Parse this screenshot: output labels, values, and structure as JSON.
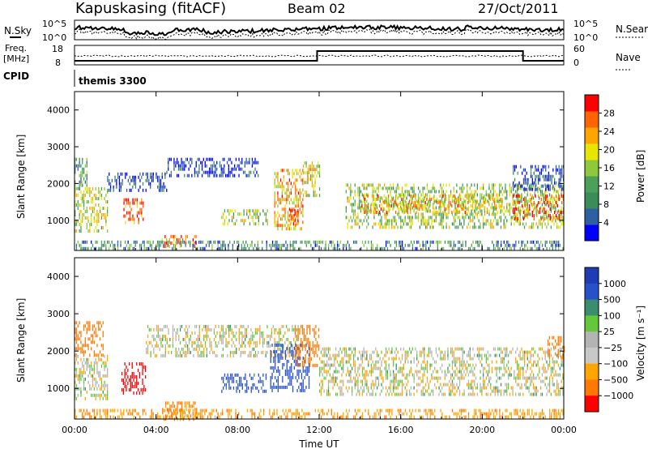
{
  "header": {
    "station": "Kapuskasing (fitACF)",
    "beam": "Beam 02",
    "date": "27/Oct/2011"
  },
  "top_panels": {
    "nsky": {
      "label": "N.Sky",
      "right_label": "N.Search",
      "ticks_left": [
        "10^5",
        "10^0"
      ],
      "ticks_right": [
        "10^5",
        "10^0"
      ]
    },
    "freq": {
      "label_line1": "Freq.",
      "label_line2": "[MHz]",
      "right_label": "Nave",
      "ticks_left": [
        "18",
        "8"
      ],
      "ticks_right": [
        "60",
        "0"
      ]
    },
    "cpid": {
      "label": "CPID",
      "value": "themis 3300"
    }
  },
  "colors": {
    "power": [
      "#0000ff",
      "#2e5fa0",
      "#3c8c5a",
      "#4ca05a",
      "#8ec83c",
      "#e6e600",
      "#ffa500",
      "#ff6400",
      "#ff0000"
    ],
    "velocity": [
      "#1e3cb4",
      "#2850c8",
      "#3c8c6e",
      "#64c83c",
      "#b4b4b4",
      "#c8c8c8",
      "#ffa500",
      "#ff7800",
      "#ff0000"
    ]
  },
  "chart_data": [
    {
      "type": "heatmap",
      "name": "power",
      "ylabel": "Slant Range [km]",
      "xlabel": "",
      "x_ticks": [
        "00:00",
        "04:00",
        "08:00",
        "12:00",
        "16:00",
        "20:00",
        "00:00"
      ],
      "xlim_hours": [
        0,
        24
      ],
      "y_ticks": [
        "1000",
        "2000",
        "3000",
        "4000"
      ],
      "ylim_km": [
        180,
        4500
      ],
      "colorbar_label": "Power [dB]",
      "colorbar_ticks": [
        "4",
        "8",
        "12",
        "16",
        "20",
        "24",
        "28"
      ],
      "regions": [
        {
          "t0": 0.0,
          "t1": 1.6,
          "r0": 700,
          "r1": 1900,
          "level": 0.55
        },
        {
          "t0": 0.0,
          "t1": 0.6,
          "r0": 1900,
          "r1": 2700,
          "level": 0.35
        },
        {
          "t0": 1.6,
          "t1": 4.5,
          "r0": 1800,
          "r1": 2300,
          "level": 0.1
        },
        {
          "t0": 2.4,
          "t1": 3.4,
          "r0": 900,
          "r1": 1600,
          "level": 0.85
        },
        {
          "t0": 4.5,
          "t1": 9.0,
          "r0": 2200,
          "r1": 2700,
          "level": 0.1
        },
        {
          "t0": 4.2,
          "t1": 6.0,
          "r0": 300,
          "r1": 600,
          "level": 0.8
        },
        {
          "t0": 7.2,
          "t1": 9.5,
          "r0": 900,
          "r1": 1300,
          "level": 0.5
        },
        {
          "t0": 9.8,
          "t1": 11.2,
          "r0": 800,
          "r1": 2400,
          "level": 0.7
        },
        {
          "t0": 10.5,
          "t1": 11.0,
          "r0": 900,
          "r1": 1300,
          "level": 0.9
        },
        {
          "t0": 11.2,
          "t1": 12.0,
          "r0": 1700,
          "r1": 2600,
          "level": 0.6
        },
        {
          "t0": 13.3,
          "t1": 24.0,
          "r0": 800,
          "r1": 2000,
          "level": 0.5
        },
        {
          "t0": 14.0,
          "t1": 21.0,
          "r0": 1200,
          "r1": 1700,
          "level": 0.7
        },
        {
          "t0": 21.5,
          "t1": 24.0,
          "r0": 1000,
          "r1": 1700,
          "level": 0.85
        },
        {
          "t0": 21.5,
          "t1": 24.0,
          "r0": 1800,
          "r1": 2500,
          "level": 0.15
        },
        {
          "t0": 0.0,
          "t1": 24.0,
          "r0": 200,
          "r1": 450,
          "level": 0.3
        }
      ]
    },
    {
      "type": "heatmap",
      "name": "velocity",
      "ylabel": "Slant Range [km]",
      "xlabel": "Time UT",
      "x_ticks": [
        "00:00",
        "04:00",
        "08:00",
        "12:00",
        "16:00",
        "20:00",
        "00:00"
      ],
      "xlim_hours": [
        0,
        24
      ],
      "y_ticks": [
        "1000",
        "2000",
        "3000",
        "4000"
      ],
      "ylim_km": [
        180,
        4500
      ],
      "colorbar_label": "Velocity [m s⁻¹]",
      "colorbar_ticks": [
        "1000",
        "500",
        "100",
        "25",
        "−25",
        "−100",
        "−500",
        "−1000"
      ],
      "regions": [
        {
          "t0": 0.0,
          "t1": 1.4,
          "r0": 1900,
          "r1": 2800,
          "vel": -300
        },
        {
          "t0": 0.0,
          "t1": 1.6,
          "r0": 700,
          "r1": 1900,
          "vel": 0
        },
        {
          "t0": 2.3,
          "t1": 3.5,
          "r0": 900,
          "r1": 1700,
          "vel": -600
        },
        {
          "t0": 3.5,
          "t1": 11.0,
          "r0": 1900,
          "r1": 2700,
          "vel": 0
        },
        {
          "t0": 4.3,
          "t1": 6.0,
          "r0": 200,
          "r1": 650,
          "vel": -120
        },
        {
          "t0": 7.2,
          "t1": 9.4,
          "r0": 900,
          "r1": 1400,
          "vel": 150
        },
        {
          "t0": 9.6,
          "t1": 11.5,
          "r0": 900,
          "r1": 2200,
          "vel": 200
        },
        {
          "t0": 10.8,
          "t1": 12.0,
          "r0": 1600,
          "r1": 2700,
          "vel": -250
        },
        {
          "t0": 12.0,
          "t1": 24.0,
          "r0": 800,
          "r1": 2100,
          "vel": 0
        },
        {
          "t0": 23.2,
          "t1": 24.0,
          "r0": 1800,
          "r1": 2400,
          "vel": -200
        },
        {
          "t0": 0.0,
          "t1": 24.0,
          "r0": 200,
          "r1": 450,
          "vel": -80
        }
      ]
    }
  ]
}
